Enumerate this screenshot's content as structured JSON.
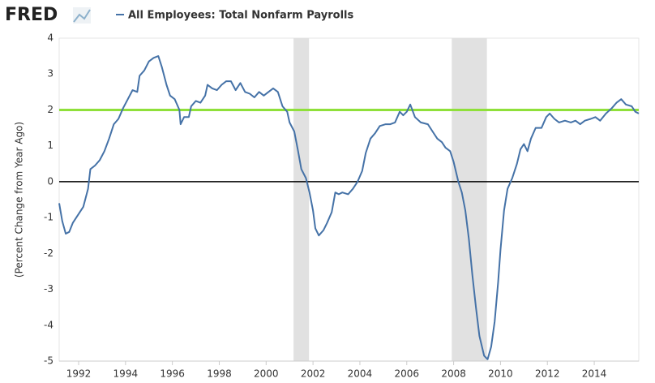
{
  "chart_data": {
    "type": "line",
    "brand": "FRED",
    "y_label": "(Percent Change from Year Ago)",
    "xlim": [
      1991.17,
      2015.9
    ],
    "xticks": [
      1992,
      1994,
      1996,
      1998,
      2000,
      2002,
      2004,
      2006,
      2008,
      2010,
      2012,
      2014
    ],
    "ylim": [
      -5,
      4
    ],
    "yticks": [
      -5,
      -4,
      -3,
      -2,
      -1,
      0,
      1,
      2,
      3,
      4
    ],
    "shaded_periods": [
      [
        2001.17,
        2001.83
      ],
      [
        2007.92,
        2009.42
      ]
    ],
    "shade_color": "#e1e1e1",
    "reference_line": {
      "value": 2,
      "color": "#8fe03a"
    },
    "series": [
      {
        "name": "All Employees: Total Nonfarm Payrolls",
        "color": "#4572a7",
        "x": [
          1991.17,
          1991.3,
          1991.45,
          1991.6,
          1991.75,
          1992.0,
          1992.2,
          1992.4,
          1992.5,
          1992.7,
          1992.9,
          1993.1,
          1993.3,
          1993.5,
          1993.7,
          1993.9,
          1994.1,
          1994.3,
          1994.5,
          1994.6,
          1994.8,
          1995.0,
          1995.2,
          1995.4,
          1995.55,
          1995.75,
          1995.9,
          1996.1,
          1996.3,
          1996.35,
          1996.5,
          1996.7,
          1996.8,
          1997.0,
          1997.2,
          1997.4,
          1997.5,
          1997.7,
          1997.9,
          1998.1,
          1998.3,
          1998.5,
          1998.7,
          1998.9,
          1999.1,
          1999.3,
          1999.5,
          1999.7,
          1999.9,
          2000.1,
          2000.3,
          2000.5,
          2000.7,
          2000.9,
          2001.0,
          2001.2,
          2001.35,
          2001.5,
          2001.7,
          2001.85,
          2002.0,
          2002.1,
          2002.25,
          2002.45,
          2002.6,
          2002.8,
          2002.95,
          2003.1,
          2003.25,
          2003.5,
          2003.7,
          2003.9,
          2004.1,
          2004.25,
          2004.45,
          2004.65,
          2004.85,
          2005.1,
          2005.3,
          2005.5,
          2005.7,
          2005.85,
          2006.0,
          2006.15,
          2006.35,
          2006.6,
          2006.9,
          2007.1,
          2007.3,
          2007.5,
          2007.65,
          2007.85,
          2008.0,
          2008.2,
          2008.35,
          2008.5,
          2008.65,
          2008.8,
          2008.95,
          2009.1,
          2009.3,
          2009.45,
          2009.6,
          2009.75,
          2009.9,
          2010.0,
          2010.15,
          2010.3,
          2010.5,
          2010.7,
          2010.85,
          2011.0,
          2011.15,
          2011.3,
          2011.5,
          2011.75,
          2011.95,
          2012.1,
          2012.3,
          2012.5,
          2012.75,
          2013.0,
          2013.2,
          2013.4,
          2013.6,
          2013.85,
          2014.05,
          2014.25,
          2014.5,
          2014.75,
          2014.95,
          2015.15,
          2015.35,
          2015.6,
          2015.75,
          2015.9
        ],
        "values": [
          -0.6,
          -1.1,
          -1.45,
          -1.4,
          -1.15,
          -0.9,
          -0.7,
          -0.2,
          0.35,
          0.45,
          0.6,
          0.85,
          1.2,
          1.6,
          1.75,
          2.05,
          2.3,
          2.55,
          2.5,
          2.95,
          3.1,
          3.35,
          3.45,
          3.5,
          3.2,
          2.7,
          2.4,
          2.3,
          2.0,
          1.6,
          1.8,
          1.8,
          2.1,
          2.25,
          2.2,
          2.4,
          2.7,
          2.6,
          2.55,
          2.7,
          2.8,
          2.8,
          2.55,
          2.75,
          2.5,
          2.45,
          2.35,
          2.5,
          2.4,
          2.5,
          2.6,
          2.5,
          2.1,
          1.95,
          1.65,
          1.4,
          0.9,
          0.35,
          0.1,
          -0.3,
          -0.8,
          -1.3,
          -1.5,
          -1.35,
          -1.15,
          -0.85,
          -0.3,
          -0.35,
          -0.3,
          -0.35,
          -0.2,
          0.0,
          0.3,
          0.8,
          1.2,
          1.35,
          1.55,
          1.6,
          1.6,
          1.65,
          1.95,
          1.85,
          1.95,
          2.15,
          1.8,
          1.65,
          1.6,
          1.4,
          1.2,
          1.1,
          0.95,
          0.85,
          0.55,
          0.0,
          -0.3,
          -0.8,
          -1.6,
          -2.6,
          -3.5,
          -4.3,
          -4.85,
          -4.95,
          -4.6,
          -3.9,
          -2.8,
          -1.9,
          -0.8,
          -0.2,
          0.1,
          0.5,
          0.9,
          1.05,
          0.85,
          1.2,
          1.5,
          1.5,
          1.8,
          1.9,
          1.75,
          1.65,
          1.7,
          1.65,
          1.7,
          1.6,
          1.7,
          1.75,
          1.8,
          1.7,
          1.9,
          2.05,
          2.2,
          2.3,
          2.15,
          2.1,
          1.95,
          1.9
        ]
      }
    ]
  }
}
